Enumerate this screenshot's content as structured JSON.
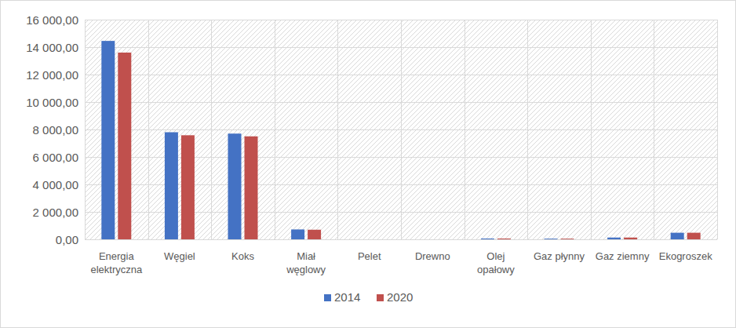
{
  "chart_data": {
    "type": "bar",
    "categories": [
      "Energia elektryczna",
      "Węgiel",
      "Koks",
      "Miał węglowy",
      "Pelet",
      "Drewno",
      "Olej opałowy",
      "Gaz płynny",
      "Gaz ziemny",
      "Ekogroszek"
    ],
    "series": [
      {
        "name": "2014",
        "color": "#4472c4",
        "values": [
          14450,
          7800,
          7700,
          720,
          0,
          0,
          60,
          50,
          130,
          480
        ]
      },
      {
        "name": "2020",
        "color": "#c0504d",
        "values": [
          13600,
          7580,
          7500,
          700,
          0,
          0,
          60,
          50,
          130,
          480
        ]
      }
    ],
    "ylim": [
      0,
      16000
    ],
    "yticks": [
      {
        "value": 0,
        "label": "0,00"
      },
      {
        "value": 2000,
        "label": "2 000,00"
      },
      {
        "value": 4000,
        "label": "4 000,00"
      },
      {
        "value": 6000,
        "label": "6 000,00"
      },
      {
        "value": 8000,
        "label": "8 000,00"
      },
      {
        "value": 10000,
        "label": "10 000,00"
      },
      {
        "value": 12000,
        "label": "12 000,00"
      },
      {
        "value": 14000,
        "label": "14 000,00"
      },
      {
        "value": 16000,
        "label": "16 000,00"
      }
    ],
    "grid": true,
    "legend": "bottom"
  }
}
